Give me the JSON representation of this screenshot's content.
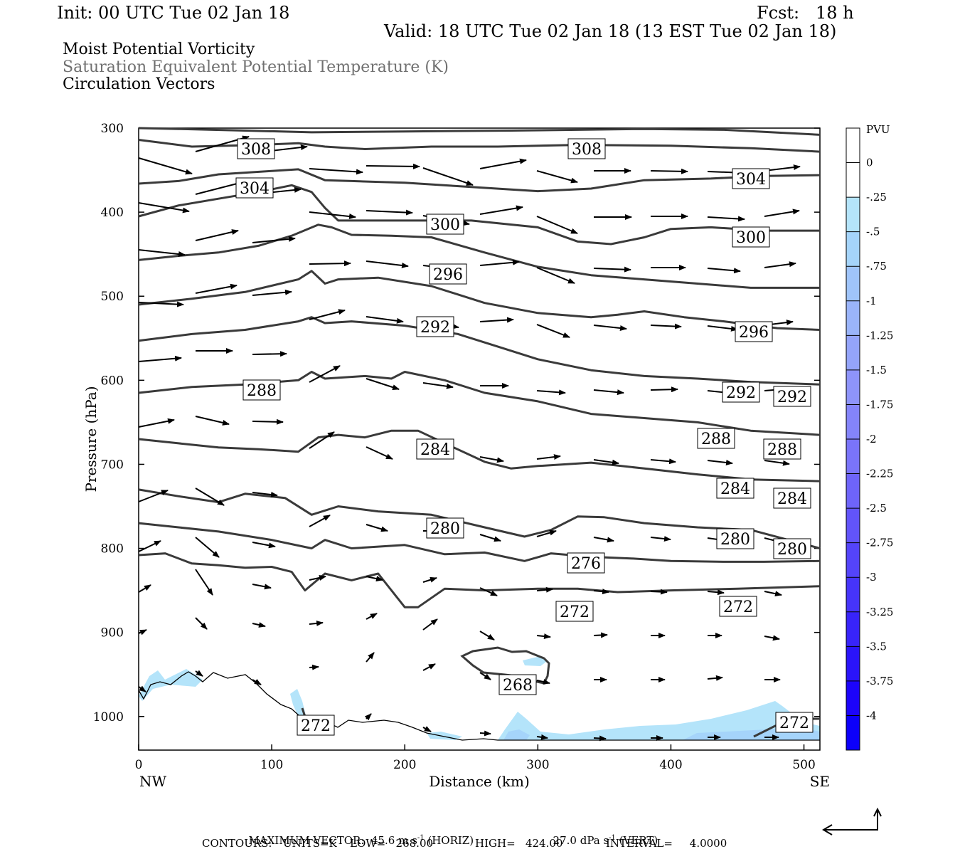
{
  "header": {
    "init": "Init: 00 UTC Tue 02 Jan 18",
    "fcst": "Fcst:   18 h",
    "valid": "Valid: 18 UTC Tue 02 Jan 18 (13 EST Tue 02 Jan 18)",
    "line1": "Moist Potential Vorticity",
    "line2": "Saturation Equivalent Potential Temperature (K)",
    "line3": "Circulation Vectors"
  },
  "colors": {
    "contour": "#3a3a3a",
    "pv_shades": [
      "#ffffff",
      "#ffffff",
      "#b4e4fa",
      "#a5d4fa",
      "#9fc4fa",
      "#9ab4fa",
      "#94a4fa",
      "#8e94fa",
      "#8484fa",
      "#7a74fa",
      "#6e64fa",
      "#6254fa",
      "#5444fa",
      "#4634fa",
      "#3824fa",
      "#2a14fa",
      "#1c04fa",
      "#0c00fa"
    ]
  },
  "chart_data": {
    "type": "cross-section",
    "xlabel": "Distance (km)",
    "ylabel": "Pressure (hPa)",
    "xlim": [
      0,
      512
    ],
    "ylim": [
      1040,
      300
    ],
    "x_ticks": [
      0,
      100,
      200,
      300,
      400,
      500
    ],
    "x_tick_labels": [
      "0",
      "100",
      "200",
      "300",
      "400",
      "500"
    ],
    "y_ticks": [
      300,
      400,
      500,
      600,
      700,
      800,
      900,
      1000
    ],
    "y_tick_labels": [
      "300",
      "400",
      "500",
      "600",
      "700",
      "800",
      "900",
      "1000"
    ],
    "endpoints": {
      "left": "NW",
      "right": "SE"
    },
    "colorbar": {
      "title": "PVU",
      "labels": [
        "0",
        "-.25",
        "-.5",
        "-.75",
        "-1",
        "-1.25",
        "-1.5",
        "-1.75",
        "-2",
        "-2.25",
        "-2.5",
        "-2.75",
        "-3",
        "-3.25",
        "-3.5",
        "-3.75",
        "-4"
      ]
    },
    "contours": [
      {
        "label": "308",
        "points": [
          [
            0,
            300
          ],
          [
            30,
            301
          ],
          [
            80,
            303
          ],
          [
            130,
            305
          ],
          [
            200,
            304
          ],
          [
            280,
            303
          ],
          [
            330,
            302
          ],
          [
            380,
            301
          ],
          [
            440,
            302
          ],
          [
            512,
            308
          ]
        ]
      },
      {
        "label": "308",
        "points": [
          [
            0,
            314
          ],
          [
            40,
            322
          ],
          [
            90,
            320
          ],
          [
            120,
            318
          ],
          [
            140,
            322
          ],
          [
            170,
            325
          ],
          [
            220,
            322
          ],
          [
            270,
            322
          ],
          [
            330,
            320
          ],
          [
            400,
            321
          ],
          [
            460,
            324
          ],
          [
            512,
            328
          ]
        ]
      },
      {
        "label": "304",
        "points": [
          [
            0,
            366
          ],
          [
            30,
            363
          ],
          [
            60,
            355
          ],
          [
            100,
            351
          ],
          [
            120,
            349
          ],
          [
            140,
            362
          ],
          [
            160,
            363
          ],
          [
            200,
            365
          ],
          [
            250,
            370
          ],
          [
            300,
            375
          ],
          [
            340,
            372
          ],
          [
            380,
            362
          ],
          [
            430,
            360
          ],
          [
            470,
            357
          ],
          [
            512,
            356
          ]
        ]
      },
      {
        "label": "300",
        "points": [
          [
            0,
            405
          ],
          [
            30,
            392
          ],
          [
            60,
            384
          ],
          [
            90,
            376
          ],
          [
            115,
            368
          ],
          [
            130,
            376
          ],
          [
            140,
            395
          ],
          [
            150,
            410
          ],
          [
            170,
            410
          ],
          [
            210,
            410
          ],
          [
            250,
            410
          ],
          [
            300,
            418
          ],
          [
            330,
            435
          ],
          [
            355,
            438
          ],
          [
            380,
            430
          ],
          [
            400,
            420
          ],
          [
            430,
            418
          ],
          [
            470,
            422
          ],
          [
            512,
            422
          ]
        ]
      },
      {
        "label": "296",
        "points": [
          [
            0,
            457
          ],
          [
            30,
            452
          ],
          [
            60,
            448
          ],
          [
            90,
            440
          ],
          [
            115,
            428
          ],
          [
            135,
            415
          ],
          [
            145,
            418
          ],
          [
            160,
            427
          ],
          [
            190,
            428
          ],
          [
            220,
            430
          ],
          [
            260,
            448
          ],
          [
            300,
            465
          ],
          [
            340,
            475
          ],
          [
            380,
            480
          ],
          [
            420,
            485
          ],
          [
            460,
            490
          ],
          [
            512,
            490
          ]
        ]
      },
      {
        "label": "292",
        "points": [
          [
            0,
            510
          ],
          [
            40,
            503
          ],
          [
            80,
            495
          ],
          [
            120,
            480
          ],
          [
            130,
            470
          ],
          [
            140,
            485
          ],
          [
            150,
            480
          ],
          [
            180,
            478
          ],
          [
            220,
            488
          ],
          [
            260,
            508
          ],
          [
            300,
            520
          ],
          [
            340,
            525
          ],
          [
            360,
            522
          ],
          [
            380,
            518
          ],
          [
            410,
            525
          ],
          [
            440,
            530
          ],
          [
            480,
            538
          ],
          [
            512,
            540
          ]
        ]
      },
      {
        "label": "288",
        "points": [
          [
            0,
            553
          ],
          [
            40,
            545
          ],
          [
            80,
            540
          ],
          [
            120,
            530
          ],
          [
            130,
            525
          ],
          [
            140,
            532
          ],
          [
            160,
            530
          ],
          [
            200,
            535
          ],
          [
            240,
            545
          ],
          [
            270,
            560
          ],
          [
            300,
            575
          ],
          [
            340,
            588
          ],
          [
            380,
            595
          ],
          [
            420,
            598
          ],
          [
            460,
            602
          ],
          [
            512,
            605
          ]
        ]
      },
      {
        "label": "284",
        "points": [
          [
            0,
            615
          ],
          [
            40,
            608
          ],
          [
            80,
            605
          ],
          [
            120,
            600
          ],
          [
            130,
            590
          ],
          [
            140,
            598
          ],
          [
            170,
            595
          ],
          [
            190,
            598
          ],
          [
            200,
            590
          ],
          [
            230,
            600
          ],
          [
            260,
            615
          ],
          [
            300,
            625
          ],
          [
            340,
            640
          ],
          [
            380,
            645
          ],
          [
            420,
            650
          ],
          [
            460,
            660
          ],
          [
            512,
            665
          ]
        ]
      },
      {
        "label": "280",
        "points": [
          [
            0,
            670
          ],
          [
            30,
            675
          ],
          [
            60,
            680
          ],
          [
            90,
            682
          ],
          [
            120,
            685
          ],
          [
            135,
            668
          ],
          [
            150,
            665
          ],
          [
            170,
            668
          ],
          [
            190,
            660
          ],
          [
            210,
            660
          ],
          [
            230,
            675
          ],
          [
            260,
            697
          ],
          [
            280,
            705
          ],
          [
            300,
            702
          ],
          [
            340,
            698
          ],
          [
            380,
            705
          ],
          [
            420,
            712
          ],
          [
            460,
            718
          ],
          [
            512,
            720
          ]
        ]
      },
      {
        "label": "276",
        "points": [
          [
            0,
            730
          ],
          [
            30,
            738
          ],
          [
            60,
            745
          ],
          [
            80,
            735
          ],
          [
            110,
            740
          ],
          [
            130,
            760
          ],
          [
            150,
            750
          ],
          [
            180,
            756
          ],
          [
            220,
            760
          ],
          [
            260,
            775
          ],
          [
            290,
            786
          ],
          [
            310,
            778
          ],
          [
            330,
            762
          ],
          [
            350,
            763
          ],
          [
            380,
            770
          ],
          [
            420,
            775
          ],
          [
            460,
            778
          ],
          [
            512,
            800
          ]
        ]
      },
      {
        "label": "272",
        "points": [
          [
            0,
            770
          ],
          [
            30,
            775
          ],
          [
            60,
            780
          ],
          [
            100,
            790
          ],
          [
            130,
            800
          ],
          [
            140,
            790
          ],
          [
            160,
            800
          ],
          [
            200,
            796
          ],
          [
            230,
            807
          ],
          [
            260,
            805
          ],
          [
            290,
            815
          ],
          [
            310,
            806
          ],
          [
            340,
            810
          ],
          [
            370,
            812
          ],
          [
            400,
            815
          ],
          [
            440,
            816
          ],
          [
            470,
            816
          ],
          [
            512,
            815
          ]
        ]
      },
      {
        "label": "268",
        "points": [
          [
            0,
            808
          ],
          [
            20,
            806
          ],
          [
            40,
            818
          ],
          [
            60,
            820
          ],
          [
            80,
            823
          ],
          [
            100,
            822
          ],
          [
            115,
            828
          ],
          [
            125,
            850
          ],
          [
            140,
            830
          ],
          [
            160,
            838
          ],
          [
            180,
            830
          ],
          [
            200,
            870
          ],
          [
            210,
            870
          ],
          [
            230,
            848
          ],
          [
            260,
            850
          ],
          [
            300,
            848
          ],
          [
            330,
            848
          ],
          [
            360,
            852
          ],
          [
            400,
            850
          ],
          [
            450,
            848
          ],
          [
            512,
            845
          ]
        ]
      }
    ],
    "contour_labels": [
      "308",
      "304",
      "300",
      "296",
      "292",
      "288",
      "284",
      "280",
      "276",
      "272",
      "268"
    ],
    "maximum_vector": {
      "label": "MAXIMUM VECTOR:",
      "horiz_value": "45.6",
      "horiz_unit": "m s",
      "horiz_exp": "-1",
      "horiz_tag": "(HORIZ)",
      "vert_value": "27.0",
      "vert_unit": "dPa s",
      "vert_exp": "-1",
      "vert_tag": "(VERT)"
    },
    "contours_info": {
      "label": "CONTOURS:",
      "units": "UNITS=K",
      "low": "LOW=   268.00",
      "high": "HIGH=   424.00",
      "interval": "INTERVAL=     4.0000"
    }
  }
}
